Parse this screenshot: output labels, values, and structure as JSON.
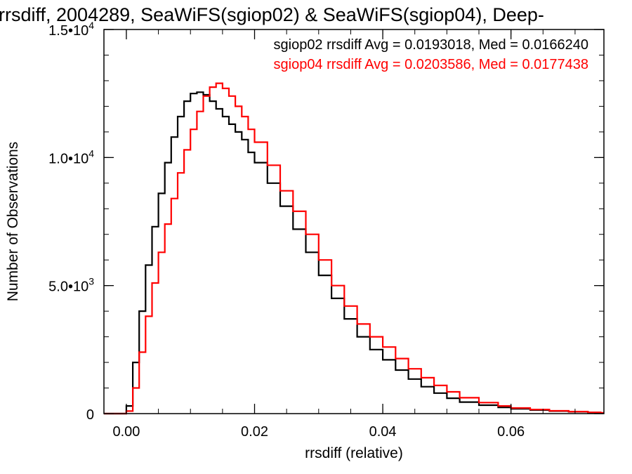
{
  "chart_data": {
    "type": "line",
    "step": true,
    "title": "rrsdiff, 2004289, SeaWiFS(sgiop02) & SeaWiFS(sgiop04), Deep-",
    "xlabel": "rrsdiff (relative)",
    "ylabel": "Number of Observations",
    "xlim": [
      -0.0035,
      0.0745
    ],
    "ylim": [
      0,
      15000
    ],
    "x_ticks": [
      0.0,
      0.02,
      0.04,
      0.06
    ],
    "x_tick_labels": [
      "0.00",
      "0.02",
      "0.04",
      "0.06"
    ],
    "y_ticks": [
      0,
      5000,
      10000,
      15000
    ],
    "y_tick_labels": [
      {
        "mantissa": "0",
        "exponent": ""
      },
      {
        "mantissa": "5.0•10",
        "exponent": "3"
      },
      {
        "mantissa": "1.0•10",
        "exponent": "4"
      },
      {
        "mantissa": "1.5•10",
        "exponent": "4"
      }
    ],
    "grid": false,
    "legend": [
      {
        "text": "sgiop02 rrsdiff Avg = 0.0193018, Med = 0.0166240",
        "color": "#000000"
      },
      {
        "text": "sgiop04 rrsdiff Avg = 0.0203586, Med = 0.0177438",
        "color": "#ff0000"
      }
    ],
    "series": [
      {
        "color": "#000000",
        "x": [
          -0.004,
          -0.001,
          0.0,
          0.001,
          0.002,
          0.003,
          0.004,
          0.005,
          0.006,
          0.007,
          0.008,
          0.009,
          0.01,
          0.011,
          0.012,
          0.013,
          0.014,
          0.015,
          0.016,
          0.017,
          0.018,
          0.019,
          0.02,
          0.022,
          0.024,
          0.026,
          0.028,
          0.03,
          0.032,
          0.034,
          0.036,
          0.038,
          0.04,
          0.042,
          0.044,
          0.046,
          0.048,
          0.05,
          0.052,
          0.055,
          0.058,
          0.06,
          0.063,
          0.066,
          0.069,
          0.072,
          0.074
        ],
        "y": [
          0,
          0,
          300,
          2000,
          4000,
          5800,
          7300,
          8600,
          9800,
          10800,
          11600,
          12200,
          12500,
          12550,
          12450,
          12200,
          11900,
          11600,
          11300,
          11000,
          10700,
          10200,
          9800,
          9000,
          8100,
          7200,
          6300,
          5400,
          4500,
          3700,
          3000,
          2500,
          2100,
          1700,
          1350,
          1050,
          800,
          600,
          450,
          330,
          240,
          190,
          140,
          100,
          70,
          40,
          20
        ]
      },
      {
        "color": "#ff0000",
        "x": [
          -0.004,
          -0.001,
          0.0,
          0.001,
          0.002,
          0.003,
          0.004,
          0.005,
          0.006,
          0.007,
          0.008,
          0.009,
          0.01,
          0.011,
          0.012,
          0.013,
          0.014,
          0.015,
          0.016,
          0.017,
          0.018,
          0.019,
          0.02,
          0.022,
          0.024,
          0.026,
          0.028,
          0.03,
          0.032,
          0.034,
          0.036,
          0.038,
          0.04,
          0.042,
          0.044,
          0.046,
          0.048,
          0.05,
          0.052,
          0.055,
          0.058,
          0.06,
          0.063,
          0.066,
          0.069,
          0.072,
          0.074
        ],
        "y": [
          0,
          0,
          100,
          1000,
          2400,
          3800,
          5100,
          6300,
          7400,
          8400,
          9400,
          10300,
          11100,
          11800,
          12400,
          12750,
          12900,
          12700,
          12400,
          12000,
          11600,
          11100,
          10600,
          9700,
          8700,
          7900,
          7000,
          6000,
          5000,
          4200,
          3500,
          3000,
          2600,
          2150,
          1750,
          1400,
          1100,
          850,
          620,
          430,
          300,
          220,
          160,
          110,
          80,
          50,
          30
        ]
      }
    ]
  }
}
